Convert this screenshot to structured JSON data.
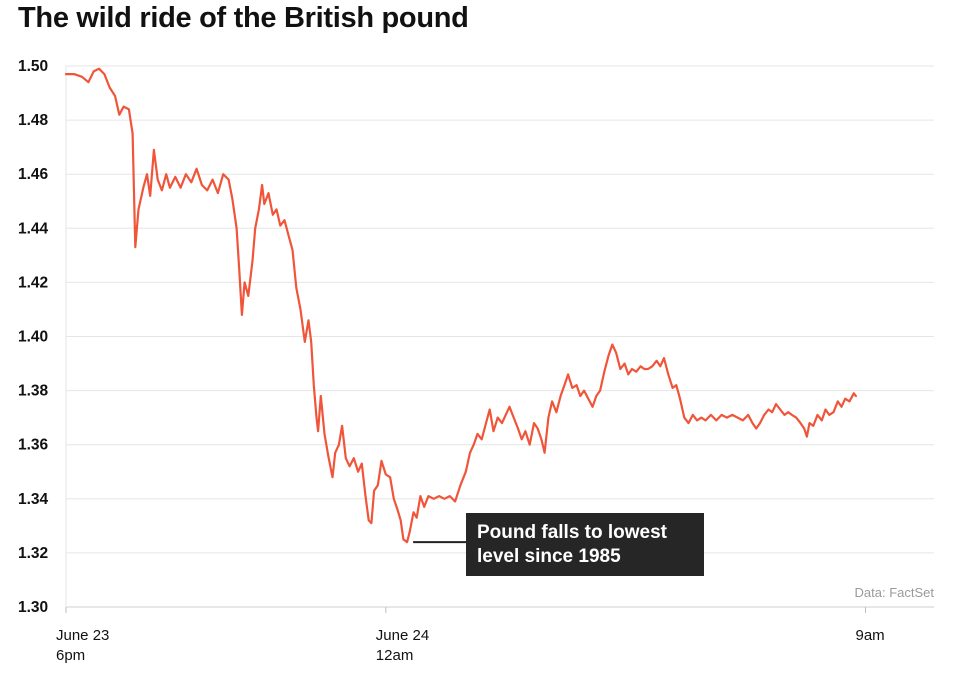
{
  "chart_data": {
    "type": "line",
    "title": "The wild ride of the British pound",
    "xlabel": "",
    "ylabel": "",
    "ylim": [
      1.3,
      1.5
    ],
    "y_ticks": [
      "1.50",
      "1.48",
      "1.46",
      "1.44",
      "1.42",
      "1.40",
      "1.38",
      "1.36",
      "1.34",
      "1.32",
      "1.30"
    ],
    "x_ticks": [
      {
        "line1": "June 23",
        "line2": "6pm",
        "hours": 0
      },
      {
        "line1": "June 24",
        "line2": "12am",
        "hours": 6
      },
      {
        "line1": "9am",
        "line2": "",
        "hours": 15
      }
    ],
    "x_axis": "hours after June 23, 6pm",
    "xlim": [
      0,
      16
    ],
    "grid": "horizontal",
    "line_color": "#f0553a",
    "series": [
      {
        "name": "",
        "points": [
          [
            0.0,
            1.497
          ],
          [
            0.15,
            1.497
          ],
          [
            0.3,
            1.496
          ],
          [
            0.42,
            1.494
          ],
          [
            0.52,
            1.498
          ],
          [
            0.62,
            1.499
          ],
          [
            0.72,
            1.497
          ],
          [
            0.82,
            1.492
          ],
          [
            0.92,
            1.489
          ],
          [
            1.0,
            1.482
          ],
          [
            1.08,
            1.485
          ],
          [
            1.18,
            1.484
          ],
          [
            1.25,
            1.475
          ],
          [
            1.3,
            1.433
          ],
          [
            1.36,
            1.447
          ],
          [
            1.45,
            1.455
          ],
          [
            1.52,
            1.46
          ],
          [
            1.58,
            1.452
          ],
          [
            1.65,
            1.469
          ],
          [
            1.72,
            1.458
          ],
          [
            1.8,
            1.454
          ],
          [
            1.88,
            1.46
          ],
          [
            1.95,
            1.455
          ],
          [
            2.05,
            1.459
          ],
          [
            2.15,
            1.455
          ],
          [
            2.25,
            1.46
          ],
          [
            2.35,
            1.457
          ],
          [
            2.45,
            1.462
          ],
          [
            2.55,
            1.456
          ],
          [
            2.65,
            1.454
          ],
          [
            2.75,
            1.458
          ],
          [
            2.85,
            1.453
          ],
          [
            2.95,
            1.46
          ],
          [
            3.05,
            1.458
          ],
          [
            3.12,
            1.451
          ],
          [
            3.2,
            1.44
          ],
          [
            3.25,
            1.425
          ],
          [
            3.3,
            1.408
          ],
          [
            3.35,
            1.42
          ],
          [
            3.42,
            1.415
          ],
          [
            3.5,
            1.428
          ],
          [
            3.55,
            1.44
          ],
          [
            3.62,
            1.447
          ],
          [
            3.68,
            1.456
          ],
          [
            3.72,
            1.449
          ],
          [
            3.8,
            1.453
          ],
          [
            3.88,
            1.445
          ],
          [
            3.95,
            1.447
          ],
          [
            4.02,
            1.441
          ],
          [
            4.1,
            1.443
          ],
          [
            4.18,
            1.437
          ],
          [
            4.25,
            1.432
          ],
          [
            4.32,
            1.418
          ],
          [
            4.4,
            1.41
          ],
          [
            4.48,
            1.398
          ],
          [
            4.55,
            1.406
          ],
          [
            4.6,
            1.398
          ],
          [
            4.65,
            1.382
          ],
          [
            4.7,
            1.37
          ],
          [
            4.73,
            1.365
          ],
          [
            4.78,
            1.378
          ],
          [
            4.85,
            1.364
          ],
          [
            4.92,
            1.356
          ],
          [
            5.0,
            1.348
          ],
          [
            5.05,
            1.357
          ],
          [
            5.12,
            1.36
          ],
          [
            5.18,
            1.367
          ],
          [
            5.25,
            1.355
          ],
          [
            5.32,
            1.352
          ],
          [
            5.4,
            1.355
          ],
          [
            5.48,
            1.35
          ],
          [
            5.55,
            1.353
          ],
          [
            5.62,
            1.341
          ],
          [
            5.68,
            1.332
          ],
          [
            5.73,
            1.331
          ],
          [
            5.78,
            1.343
          ],
          [
            5.85,
            1.345
          ],
          [
            5.92,
            1.354
          ],
          [
            6.0,
            1.349
          ],
          [
            6.08,
            1.348
          ],
          [
            6.15,
            1.34
          ],
          [
            6.22,
            1.336
          ],
          [
            6.28,
            1.332
          ],
          [
            6.33,
            1.325
          ],
          [
            6.4,
            1.324
          ],
          [
            6.45,
            1.328
          ],
          [
            6.52,
            1.335
          ],
          [
            6.58,
            1.333
          ],
          [
            6.65,
            1.341
          ],
          [
            6.72,
            1.337
          ],
          [
            6.8,
            1.341
          ],
          [
            6.9,
            1.34
          ],
          [
            7.0,
            1.341
          ],
          [
            7.1,
            1.34
          ],
          [
            7.2,
            1.341
          ],
          [
            7.3,
            1.339
          ],
          [
            7.4,
            1.345
          ],
          [
            7.5,
            1.35
          ],
          [
            7.58,
            1.357
          ],
          [
            7.65,
            1.36
          ],
          [
            7.72,
            1.364
          ],
          [
            7.8,
            1.362
          ],
          [
            7.88,
            1.368
          ],
          [
            7.95,
            1.373
          ],
          [
            8.02,
            1.365
          ],
          [
            8.1,
            1.37
          ],
          [
            8.18,
            1.368
          ],
          [
            8.25,
            1.371
          ],
          [
            8.32,
            1.374
          ],
          [
            8.4,
            1.37
          ],
          [
            8.48,
            1.366
          ],
          [
            8.55,
            1.362
          ],
          [
            8.62,
            1.365
          ],
          [
            8.7,
            1.36
          ],
          [
            8.78,
            1.368
          ],
          [
            8.85,
            1.366
          ],
          [
            8.92,
            1.362
          ],
          [
            8.98,
            1.357
          ],
          [
            9.05,
            1.37
          ],
          [
            9.12,
            1.376
          ],
          [
            9.2,
            1.372
          ],
          [
            9.28,
            1.378
          ],
          [
            9.35,
            1.382
          ],
          [
            9.42,
            1.386
          ],
          [
            9.5,
            1.381
          ],
          [
            9.58,
            1.382
          ],
          [
            9.65,
            1.378
          ],
          [
            9.72,
            1.38
          ],
          [
            9.8,
            1.377
          ],
          [
            9.88,
            1.374
          ],
          [
            9.95,
            1.378
          ],
          [
            10.02,
            1.38
          ],
          [
            10.1,
            1.387
          ],
          [
            10.18,
            1.393
          ],
          [
            10.25,
            1.397
          ],
          [
            10.32,
            1.394
          ],
          [
            10.4,
            1.388
          ],
          [
            10.48,
            1.39
          ],
          [
            10.55,
            1.386
          ],
          [
            10.62,
            1.388
          ],
          [
            10.7,
            1.387
          ],
          [
            10.78,
            1.389
          ],
          [
            10.85,
            1.388
          ],
          [
            10.92,
            1.388
          ],
          [
            11.0,
            1.389
          ],
          [
            11.08,
            1.391
          ],
          [
            11.15,
            1.389
          ],
          [
            11.22,
            1.392
          ],
          [
            11.3,
            1.386
          ],
          [
            11.38,
            1.381
          ],
          [
            11.45,
            1.382
          ],
          [
            11.52,
            1.377
          ],
          [
            11.6,
            1.37
          ],
          [
            11.68,
            1.368
          ],
          [
            11.76,
            1.371
          ],
          [
            11.84,
            1.369
          ],
          [
            11.92,
            1.37
          ],
          [
            12.0,
            1.369
          ],
          [
            12.1,
            1.371
          ],
          [
            12.2,
            1.369
          ],
          [
            12.3,
            1.371
          ],
          [
            12.4,
            1.37
          ],
          [
            12.5,
            1.371
          ],
          [
            12.6,
            1.37
          ],
          [
            12.7,
            1.369
          ],
          [
            12.8,
            1.371
          ],
          [
            12.88,
            1.368
          ],
          [
            12.95,
            1.366
          ],
          [
            13.02,
            1.368
          ],
          [
            13.1,
            1.371
          ],
          [
            13.18,
            1.373
          ],
          [
            13.25,
            1.372
          ],
          [
            13.32,
            1.375
          ],
          [
            13.4,
            1.373
          ],
          [
            13.48,
            1.371
          ],
          [
            13.55,
            1.372
          ],
          [
            13.62,
            1.371
          ],
          [
            13.7,
            1.37
          ],
          [
            13.78,
            1.368
          ],
          [
            13.85,
            1.366
          ],
          [
            13.9,
            1.363
          ],
          [
            13.95,
            1.368
          ],
          [
            14.02,
            1.367
          ],
          [
            14.1,
            1.371
          ],
          [
            14.18,
            1.369
          ],
          [
            14.25,
            1.373
          ],
          [
            14.32,
            1.371
          ],
          [
            14.4,
            1.372
          ],
          [
            14.48,
            1.376
          ],
          [
            14.55,
            1.374
          ],
          [
            14.62,
            1.377
          ],
          [
            14.7,
            1.376
          ],
          [
            14.78,
            1.379
          ],
          [
            14.82,
            1.378
          ]
        ]
      }
    ],
    "annotation": {
      "lines": [
        "Pound falls to lowest",
        "level since 1985"
      ],
      "point": [
        6.4,
        1.324
      ]
    },
    "source": "Data: FactSet"
  }
}
